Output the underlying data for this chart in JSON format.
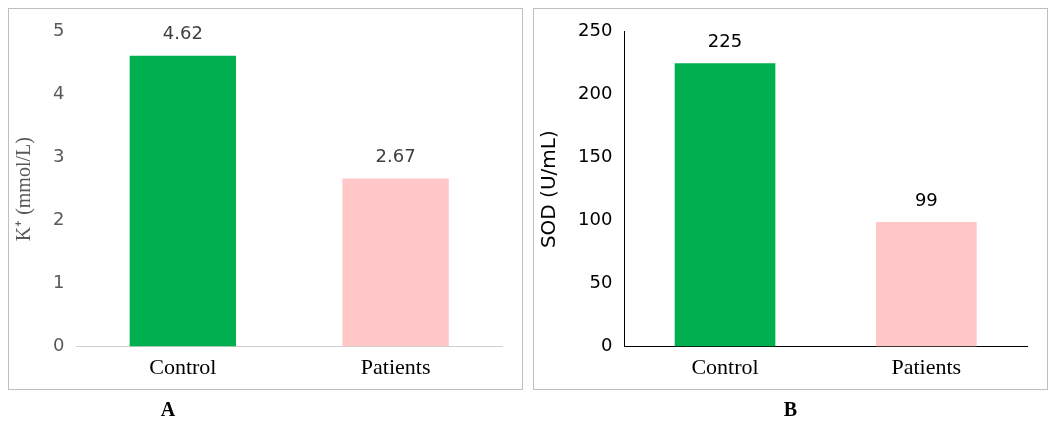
{
  "chart_data": [
    {
      "type": "bar",
      "categories": [
        "Control",
        "Patients"
      ],
      "values": [
        4.62,
        2.67
      ],
      "colors": [
        "#00b050",
        "#ffc7c7"
      ],
      "ylabel": "K⁺ (mmol/L)",
      "ylim": [
        0,
        5
      ],
      "yticks": [
        0,
        1,
        2,
        3,
        4,
        5
      ],
      "grid": false,
      "legend": false,
      "data_labels": true,
      "annotations": [
        "A"
      ]
    },
    {
      "type": "bar",
      "categories": [
        "Control",
        "Patients"
      ],
      "values": [
        225,
        99
      ],
      "colors": [
        "#00b050",
        "#ffc7c7"
      ],
      "ylabel": "SOD (U/mL)",
      "ylim": [
        0,
        250
      ],
      "yticks": [
        0,
        50,
        100,
        150,
        200,
        250
      ],
      "grid": false,
      "legend": false,
      "data_labels": true,
      "annotations": [
        "B"
      ]
    }
  ]
}
